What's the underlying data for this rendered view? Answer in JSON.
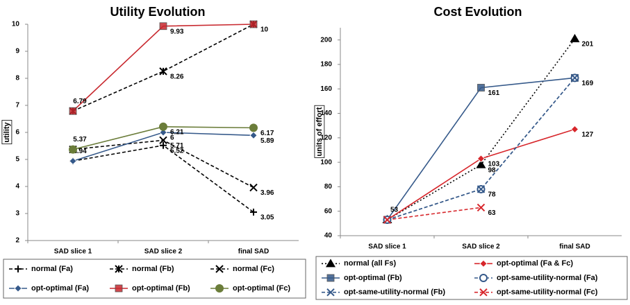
{
  "chart_data": [
    {
      "type": "line",
      "title": "Utility Evolution",
      "y_label": "utility",
      "categories": [
        "SAD slice 1",
        "SAD slice 2",
        "final SAD"
      ],
      "ylim": [
        2,
        10
      ],
      "yticks": [
        2,
        3,
        4,
        5,
        6,
        7,
        8,
        9,
        10
      ],
      "grid": false,
      "legend": "bottom",
      "series": [
        {
          "name": "normal (Fa)",
          "color": "#000000",
          "dash": "dashed",
          "marker": "plus",
          "values": [
            4.94,
            5.52,
            3.05
          ]
        },
        {
          "name": "normal (Fb)",
          "color": "#000000",
          "dash": "dashed",
          "marker": "asterisk",
          "values": [
            6.79,
            8.26,
            10
          ]
        },
        {
          "name": "normal (Fc)",
          "color": "#000000",
          "dash": "dashed",
          "marker": "x",
          "values": [
            5.37,
            5.71,
            3.96
          ]
        },
        {
          "name": "opt-optimal (Fa)",
          "color": "#35598a",
          "dash": "solid",
          "marker": "diamond",
          "values": [
            4.94,
            6,
            5.89
          ]
        },
        {
          "name": "opt-optimal (Fb)",
          "color": "#c8282e",
          "dash": "solid",
          "marker": "square",
          "values": [
            6.79,
            9.93,
            10
          ]
        },
        {
          "name": "opt-optimal (Fc)",
          "color": "#6b7d3a",
          "dash": "solid",
          "marker": "circle",
          "values": [
            5.37,
            6.21,
            6.17
          ]
        }
      ]
    },
    {
      "type": "line",
      "title": "Cost Evolution",
      "y_label": "units of effort",
      "categories": [
        "SAD slice 1",
        "SAD slice 2",
        "final SAD"
      ],
      "ylim": [
        40,
        210
      ],
      "yticks": [
        40,
        60,
        80,
        100,
        120,
        140,
        160,
        180,
        200
      ],
      "grid": false,
      "legend": "bottom",
      "series": [
        {
          "name": "normal (all Fs)",
          "color": "#000000",
          "dash": "dotted",
          "marker": "triangle",
          "values": [
            53,
            98,
            201
          ]
        },
        {
          "name": "opt-optimal (Fa & Fc)",
          "color": "#d7262b",
          "dash": "solid",
          "marker": "diamond",
          "values": [
            53,
            103,
            127
          ]
        },
        {
          "name": "opt-optimal (Fb)",
          "color": "#35598a",
          "dash": "solid",
          "marker": "square",
          "values": [
            53,
            161,
            169
          ]
        },
        {
          "name": "opt-same-utility-normal (Fa)",
          "color": "#35598a",
          "dash": "dashed",
          "marker": "circle",
          "values": [
            53,
            78,
            169
          ]
        },
        {
          "name": "opt-same-utility-normal (Fb)",
          "color": "#35598a",
          "dash": "dashed",
          "marker": "x",
          "values": [
            53,
            78,
            169
          ]
        },
        {
          "name": "opt-same-utility-normal (Fc)",
          "color": "#d7262b",
          "dash": "dashed",
          "marker": "x",
          "values": [
            53,
            63,
            null
          ]
        }
      ]
    }
  ]
}
